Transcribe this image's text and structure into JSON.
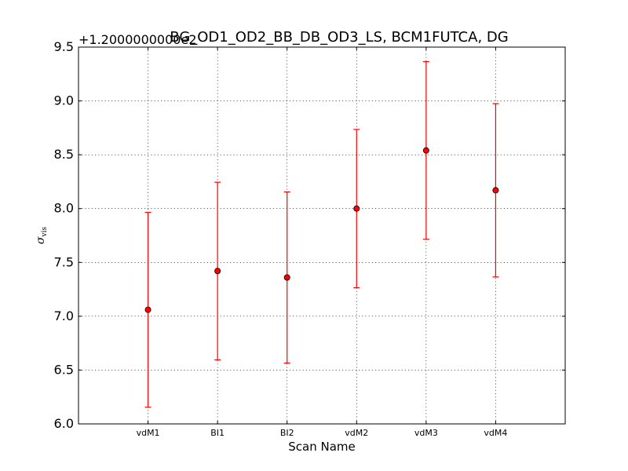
{
  "chart_data": {
    "type": "scatter",
    "title": "BG_OD1_OD2_BB_DB_OD3_LS, BCM1FUTCA, DG",
    "offset_text": "+1.2000000000e2",
    "xlabel": "Scan Name",
    "ylabel": "σvis",
    "ylabel_main": "σ",
    "ylabel_sub": "vis",
    "categories": [
      "vdM1",
      "BI1",
      "BI2",
      "vdM2",
      "vdM3",
      "vdM4"
    ],
    "values": [
      7.06,
      7.42,
      7.36,
      8.0,
      8.54,
      8.17
    ],
    "errors": [
      0.905,
      0.825,
      0.795,
      0.735,
      0.825,
      0.805
    ],
    "ylim": [
      6.0,
      9.5
    ],
    "xlim": [
      -1,
      6
    ],
    "yticks": [
      "6.0",
      "6.5",
      "7.0",
      "7.5",
      "8.0",
      "8.5",
      "9.0",
      "9.5"
    ],
    "grid": true,
    "marker_color": "#ff0000",
    "errorbar_color": "#ff0000"
  }
}
